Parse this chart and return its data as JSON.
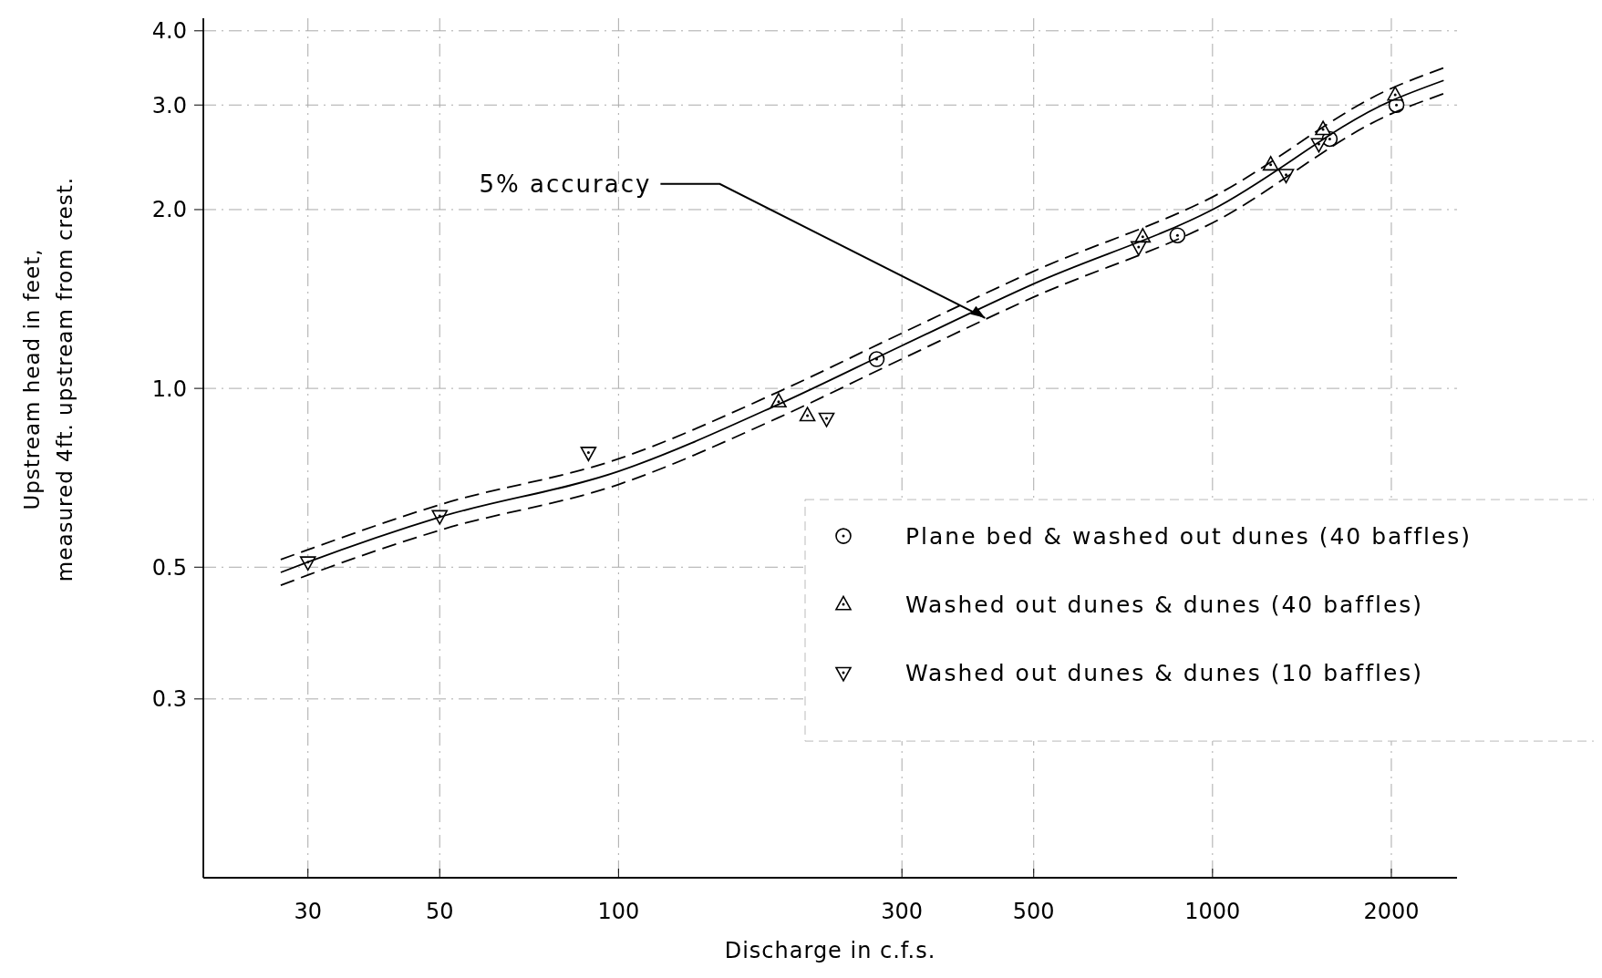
{
  "chart_data": {
    "type": "scatter",
    "xlabel": "Discharge in c.f.s.",
    "ylabel": "Upstream head in feet,\nmeasured 4ft. upstream from crest.",
    "log": "xy",
    "xlim": [
      20,
      2580
    ],
    "ylim": [
      0.15,
      4.2
    ],
    "xticks": [
      30,
      50,
      100,
      300,
      500,
      1000,
      2000
    ],
    "yticks": [
      {
        "value": 0.3,
        "label": "0.3"
      },
      {
        "value": 0.5,
        "label": "0.5"
      },
      {
        "value": 1,
        "label": "1.0"
      },
      {
        "value": 2,
        "label": "2.0"
      },
      {
        "value": 3,
        "label": "3.0"
      },
      {
        "value": 4,
        "label": "4.0"
      }
    ],
    "grid": true,
    "legend": "right",
    "annotations": [
      {
        "text": "5% accuracy",
        "x": 420,
        "y": 1.3
      }
    ],
    "series": [
      {
        "name": "Plane bed & washed out dunes (40 baffles)",
        "color": "#000000",
        "marker": "circle",
        "x": [
          272,
          873,
          1575,
          2040
        ],
        "values": [
          1.12,
          1.81,
          2.63,
          3.0
        ]
      },
      {
        "name": "Washed out dunes & dunes (40 baffles)",
        "color": "#000000",
        "marker": "triangle",
        "x": [
          186,
          208,
          763,
          1253,
          1535,
          2030
        ],
        "values": [
          0.95,
          0.9,
          1.8,
          2.38,
          2.73,
          3.12
        ]
      },
      {
        "name": "Washed out dunes & dunes (10 baffles)",
        "color": "#000000",
        "marker": "triangle-down",
        "x": [
          30,
          50,
          89,
          224,
          751,
          1330,
          1510
        ],
        "values": [
          0.51,
          0.61,
          0.78,
          0.89,
          1.73,
          2.29,
          2.58
        ]
      },
      {
        "type": "line",
        "color": "#000000",
        "line_style": "solid",
        "x": [
          27,
          30,
          50,
          100,
          186,
          300,
          500,
          1000,
          2000,
          2450
        ],
        "values": [
          0.49,
          0.51,
          0.607,
          0.725,
          0.94,
          1.18,
          1.5,
          2.0,
          3.05,
          3.3
        ]
      },
      {
        "type": "line",
        "color": "#000000",
        "line_style": "dashed",
        "x": [
          27,
          30,
          50,
          100,
          186,
          300,
          500,
          1000,
          2000,
          2450
        ],
        "values": [
          0.515,
          0.535,
          0.637,
          0.761,
          0.987,
          1.239,
          1.575,
          2.1,
          3.2,
          3.465
        ]
      },
      {
        "type": "line",
        "color": "#000000",
        "line_style": "dashed",
        "x": [
          27,
          30,
          50,
          100,
          186,
          300,
          500,
          1000,
          2000,
          2450
        ],
        "values": [
          0.466,
          0.485,
          0.577,
          0.689,
          0.893,
          1.121,
          1.425,
          1.9,
          2.9,
          3.135
        ]
      }
    ]
  }
}
